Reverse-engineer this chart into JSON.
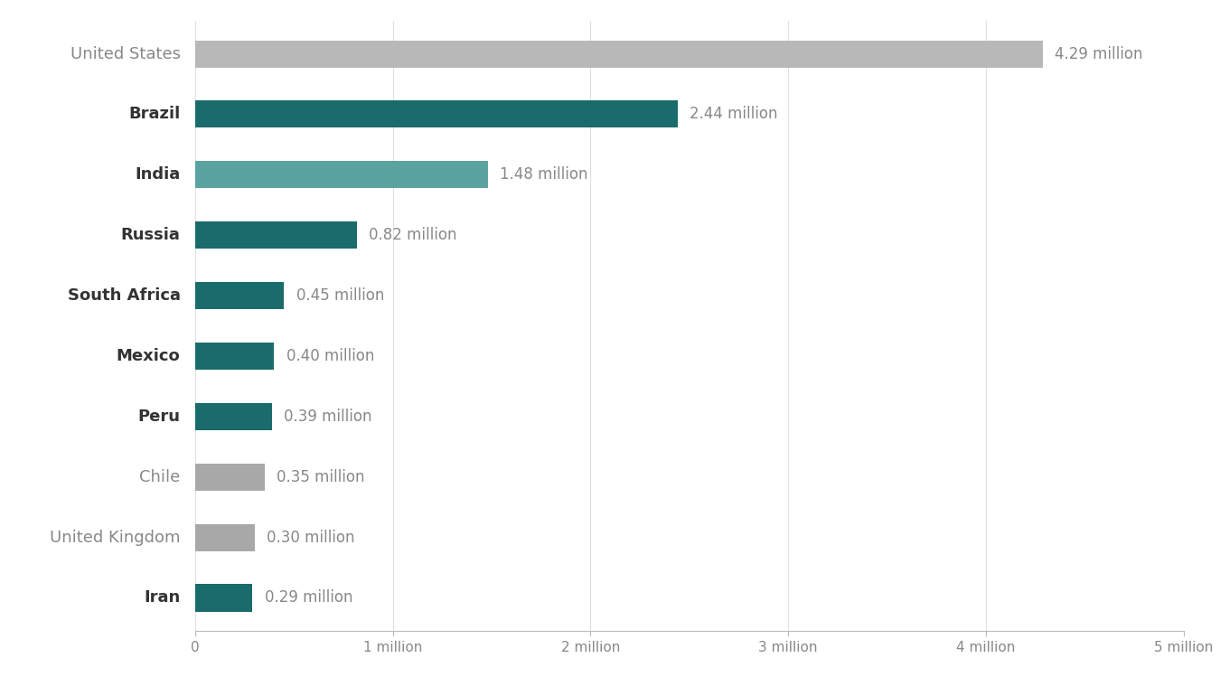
{
  "countries": [
    "United States",
    "Brazil",
    "India",
    "Russia",
    "South Africa",
    "Mexico",
    "Peru",
    "Chile",
    "United Kingdom",
    "Iran"
  ],
  "values": [
    4.29,
    2.44,
    1.48,
    0.82,
    0.45,
    0.4,
    0.39,
    0.35,
    0.3,
    0.29
  ],
  "labels": [
    "4.29 million",
    "2.44 million",
    "1.48 million",
    "0.82 million",
    "0.45 million",
    "0.40 million",
    "0.39 million",
    "0.35 million",
    "0.30 million",
    "0.29 million"
  ],
  "colors": [
    "#b8b8b8",
    "#1a6b6b",
    "#5ba3a0",
    "#1a6b6b",
    "#1a6b6b",
    "#1a6b6b",
    "#1a6b6b",
    "#a8a8a8",
    "#a8a8a8",
    "#1a6b6b"
  ],
  "bold_labels": [
    false,
    true,
    true,
    true,
    true,
    true,
    true,
    false,
    false,
    true
  ],
  "background_color": "#ffffff",
  "text_color": "#888888",
  "country_color_bold": "#333333",
  "country_color_normal": "#888888",
  "label_fontsize": 12,
  "tick_fontsize": 11,
  "xlim": [
    0,
    5
  ],
  "xticks": [
    0,
    1,
    2,
    3,
    4,
    5
  ],
  "xtick_labels": [
    "0",
    "1 million",
    "2 million",
    "3 million",
    "4 million",
    "5 million"
  ],
  "bar_height": 0.45
}
